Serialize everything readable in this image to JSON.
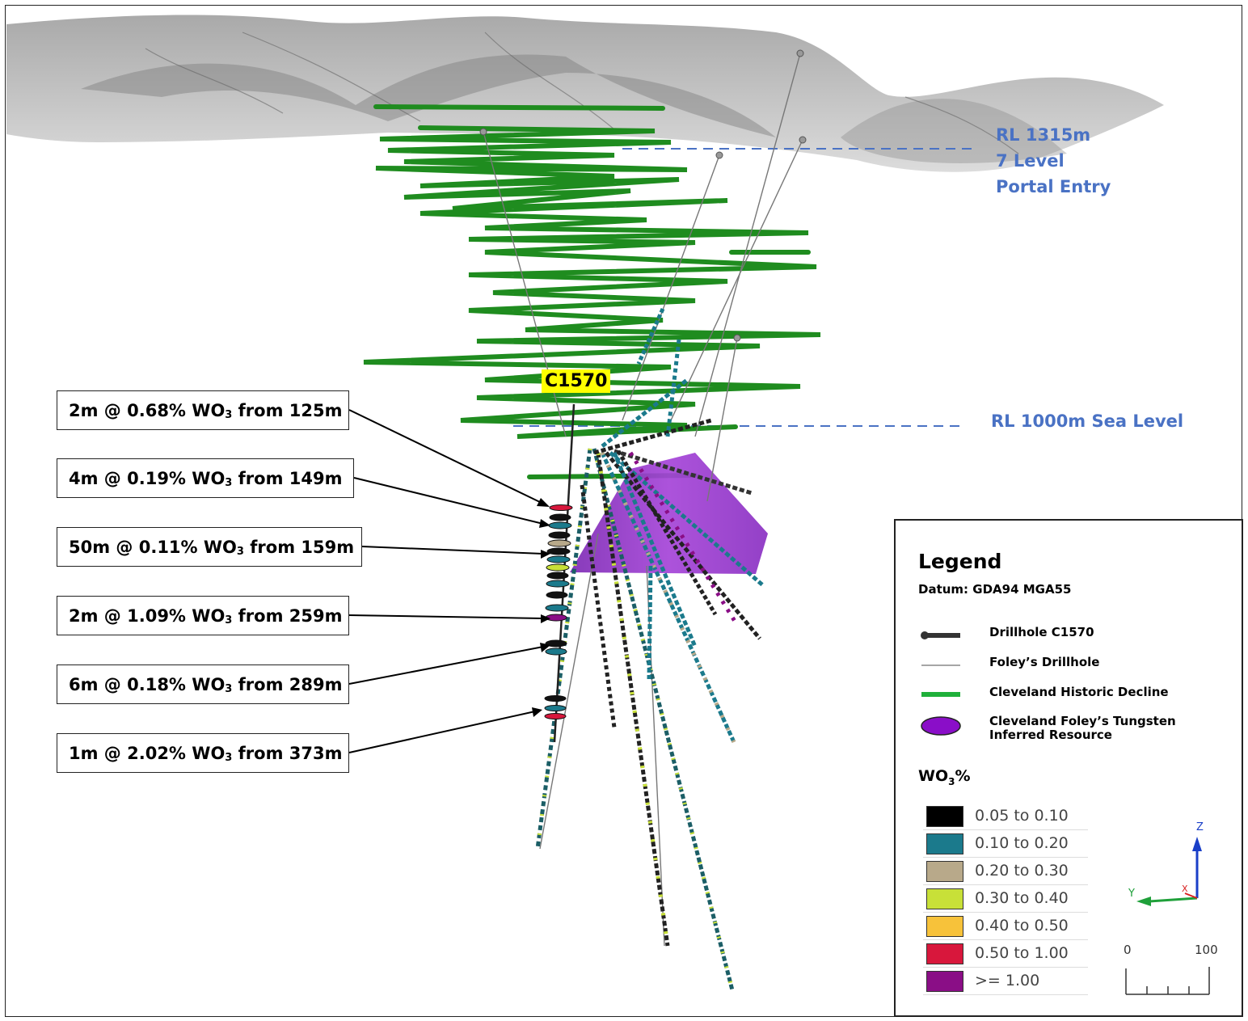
{
  "levels": {
    "rl1315": [
      "RL 1315m",
      "7 Level",
      "Portal Entry"
    ],
    "rl1000": "RL 1000m Sea Level"
  },
  "drillhole_tag": "C1570",
  "intercepts": [
    {
      "pre": "2m @ 0.68% WO",
      "sub": "3",
      "post": " from 125m"
    },
    {
      "pre": "4m @ 0.19% WO",
      "sub": "3",
      "post": " from 149m"
    },
    {
      "pre": "50m @ 0.11% WO",
      "sub": "3",
      "post": " from 159m"
    },
    {
      "pre": "2m @ 1.09% WO",
      "sub": "3",
      "post": " from 259m"
    },
    {
      "pre": "6m @ 0.18% WO",
      "sub": "3",
      "post": " from 289m"
    },
    {
      "pre": "1m @ 2.02% WO",
      "sub": "3",
      "post": " from 373m"
    }
  ],
  "legend": {
    "title": "Legend",
    "datum": "Datum: GDA94 MGA55",
    "items": [
      {
        "label": "Drillhole C1570",
        "symbol": "thick-line"
      },
      {
        "label": "Foley’s Drillhole",
        "symbol": "thin-line"
      },
      {
        "label": "Cleveland Historic Decline",
        "symbol": "green-line"
      },
      {
        "label": "Cleveland Foley’s Tungsten",
        "label2": "Inferred Resource",
        "symbol": "purple-ellipse"
      }
    ],
    "grade_title_pre": "WO",
    "grade_title_sub": "3",
    "grade_title_post": "%",
    "grades": [
      {
        "label": "0.05 to 0.10",
        "color": "#000000"
      },
      {
        "label": "0.10 to 0.20",
        "color": "#1b7a8c"
      },
      {
        "label": "0.20 to 0.30",
        "color": "#b8a98a"
      },
      {
        "label": "0.30 to 0.40",
        "color": "#c8e038"
      },
      {
        "label": "0.40 to 0.50",
        "color": "#f7c23a"
      },
      {
        "label": "0.50 to 1.00",
        "color": "#d8173c"
      },
      {
        "label": ">= 1.00",
        "color": "#8a0e86"
      }
    ]
  },
  "axes": {
    "z": "Z",
    "y": "Y",
    "x": "X"
  },
  "scale": {
    "start": "0",
    "end": "100"
  },
  "colors": {
    "decline": "#1f8c1f",
    "resource": "#8e2fc4",
    "level_line": "#4a72c4",
    "terrain": "#b8b8b8"
  }
}
